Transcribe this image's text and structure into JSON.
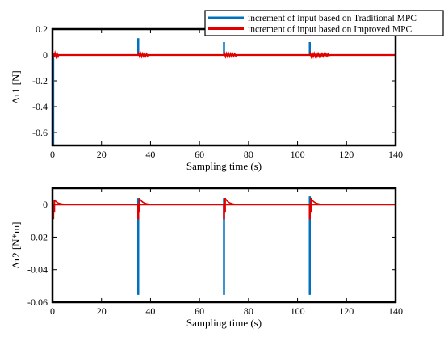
{
  "chart_data": [
    {
      "type": "line",
      "ylabel": "Δτ1 [N]",
      "xlabel": "Sampling time (s)",
      "xlim": [
        0,
        140
      ],
      "ylim": [
        -0.7,
        0.2
      ],
      "xticks": [
        0,
        20,
        40,
        60,
        80,
        100,
        120,
        140
      ],
      "yticks": [
        0.2,
        0,
        -0.2,
        -0.4,
        -0.6
      ],
      "ytick_labels": [
        "0.2",
        "0",
        "-0.2",
        "-0.4",
        "-0.6"
      ],
      "grid": false,
      "legend_position": "top-right",
      "series": [
        {
          "name": "increment of input based on Traditional MPC",
          "color": "#0072BD",
          "spikes": [
            {
              "x": 0.3,
              "y": -0.7
            },
            {
              "x": 35,
              "y": 0.13
            },
            {
              "x": 70,
              "y": 0.1
            },
            {
              "x": 105,
              "y": 0.1
            }
          ]
        },
        {
          "name": "increment of input based on Improved MPC",
          "color": "#E00000",
          "oscillations": [
            {
              "x_start": 0,
              "x_end": 2.5,
              "amplitude": 0.018
            },
            {
              "x_start": 35,
              "x_end": 39,
              "amplitude": 0.013
            },
            {
              "x_start": 70,
              "x_end": 75,
              "amplitude": 0.013
            },
            {
              "x_start": 105,
              "x_end": 113,
              "amplitude": 0.013
            }
          ]
        }
      ]
    },
    {
      "type": "line",
      "ylabel": "Δτ2 [N*m]",
      "xlabel": "Sampling time (s)",
      "xlim": [
        0,
        140
      ],
      "ylim": [
        -0.06,
        0.01
      ],
      "xticks": [
        0,
        20,
        40,
        60,
        80,
        100,
        120,
        140
      ],
      "yticks": [
        0,
        -0.02,
        -0.04,
        -0.06
      ],
      "ytick_labels": [
        "0",
        "-0.02",
        "-0.04",
        "-0.06"
      ],
      "grid": false,
      "series": [
        {
          "name": "increment of input based on Traditional MPC",
          "color": "#0072BD",
          "spikes": [
            {
              "x": 35,
              "y": -0.0555,
              "top": 0.004
            },
            {
              "x": 70,
              "y": -0.0555,
              "top": 0.004
            },
            {
              "x": 105,
              "y": -0.0555,
              "top": 0.005
            }
          ]
        },
        {
          "name": "increment of input based on Improved MPC",
          "color": "#E00000",
          "transients": [
            {
              "x": 0.3,
              "low": -0.009,
              "peak": 0.003
            },
            {
              "x": 35,
              "low": -0.009,
              "peak": 0.004
            },
            {
              "x": 70,
              "low": -0.009,
              "peak": 0.004
            },
            {
              "x": 105,
              "low": -0.009,
              "peak": 0.004
            }
          ]
        }
      ]
    }
  ]
}
